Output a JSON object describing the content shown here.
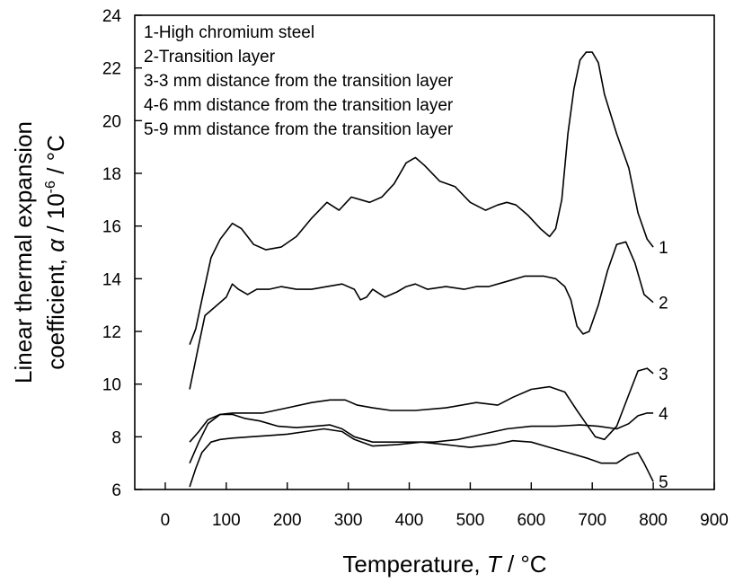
{
  "chart_data": {
    "type": "line",
    "xlabel": {
      "prefix": "Temperature,  ",
      "symbol": "T",
      "suffix": " / °C"
    },
    "ylabel": {
      "line1": "Linear thermal expansion",
      "line2_prefix": "coefficient, ",
      "line2_symbol": "α",
      "line2_mid": " / 10",
      "line2_sup": "-6",
      "line2_suffix": " / °C"
    },
    "xlim": [
      -50,
      900
    ],
    "ylim": [
      6,
      24
    ],
    "xticks": [
      "0",
      "100",
      "200",
      "300",
      "400",
      "500",
      "600",
      "700",
      "800",
      "900"
    ],
    "yticks": [
      "6",
      "8",
      "10",
      "12",
      "14",
      "16",
      "18",
      "20",
      "22",
      "24"
    ],
    "legend": [
      "1-High chromium steel",
      "2-Transition layer",
      "3-3 mm distance from the transition layer",
      "4-6 mm distance from the transition layer",
      "5-9 mm distance from the transition layer"
    ],
    "series": [
      {
        "name": "1",
        "x": [
          40,
          50,
          60,
          75,
          90,
          110,
          125,
          145,
          165,
          190,
          215,
          240,
          265,
          285,
          305,
          320,
          335,
          355,
          375,
          395,
          410,
          425,
          450,
          475,
          500,
          525,
          545,
          560,
          575,
          595,
          615,
          630,
          640,
          650,
          660,
          670,
          680,
          690,
          700,
          710,
          720,
          740,
          760,
          775,
          790,
          800
        ],
        "y": [
          11.5,
          12.1,
          13.2,
          14.8,
          15.5,
          16.1,
          15.9,
          15.3,
          15.1,
          15.2,
          15.6,
          16.3,
          16.9,
          16.6,
          17.1,
          17.0,
          16.9,
          17.1,
          17.6,
          18.4,
          18.6,
          18.3,
          17.7,
          17.5,
          16.9,
          16.6,
          16.8,
          16.9,
          16.8,
          16.4,
          15.9,
          15.6,
          15.9,
          17.0,
          19.5,
          21.2,
          22.3,
          22.6,
          22.6,
          22.2,
          21.0,
          19.5,
          18.2,
          16.5,
          15.5,
          15.2
        ]
      },
      {
        "name": "2",
        "x": [
          40,
          55,
          65,
          80,
          100,
          110,
          120,
          135,
          150,
          170,
          190,
          215,
          240,
          265,
          290,
          310,
          320,
          330,
          340,
          360,
          380,
          395,
          410,
          430,
          460,
          490,
          510,
          530,
          560,
          590,
          620,
          640,
          655,
          665,
          675,
          685,
          695,
          710,
          725,
          740,
          755,
          770,
          785,
          800
        ],
        "y": [
          9.8,
          11.5,
          12.6,
          12.9,
          13.3,
          13.8,
          13.6,
          13.4,
          13.6,
          13.6,
          13.7,
          13.6,
          13.6,
          13.7,
          13.8,
          13.6,
          13.2,
          13.3,
          13.6,
          13.3,
          13.5,
          13.7,
          13.8,
          13.6,
          13.7,
          13.6,
          13.7,
          13.7,
          13.9,
          14.1,
          14.1,
          14.0,
          13.7,
          13.2,
          12.2,
          11.9,
          12.0,
          13.0,
          14.3,
          15.3,
          15.4,
          14.6,
          13.4,
          13.1
        ]
      },
      {
        "name": "3",
        "x": [
          40,
          55,
          70,
          90,
          110,
          130,
          160,
          200,
          240,
          270,
          295,
          315,
          340,
          370,
          410,
          460,
          510,
          545,
          570,
          600,
          630,
          655,
          675,
          690,
          705,
          720,
          740,
          760,
          775,
          790,
          800
        ],
        "y": [
          7.0,
          7.8,
          8.5,
          8.85,
          8.9,
          8.9,
          8.9,
          9.1,
          9.3,
          9.4,
          9.4,
          9.2,
          9.1,
          9.0,
          9.0,
          9.1,
          9.3,
          9.2,
          9.5,
          9.8,
          9.9,
          9.7,
          9.0,
          8.5,
          8.0,
          7.9,
          8.4,
          9.6,
          10.5,
          10.6,
          10.4
        ]
      },
      {
        "name": "4",
        "x": [
          40,
          55,
          70,
          90,
          110,
          130,
          155,
          185,
          215,
          245,
          270,
          290,
          310,
          340,
          370,
          400,
          440,
          480,
          520,
          560,
          600,
          640,
          680,
          710,
          740,
          760,
          775,
          790,
          800
        ],
        "y": [
          7.8,
          8.2,
          8.65,
          8.85,
          8.85,
          8.7,
          8.6,
          8.4,
          8.35,
          8.4,
          8.45,
          8.3,
          8.0,
          7.8,
          7.8,
          7.8,
          7.8,
          7.9,
          8.1,
          8.3,
          8.4,
          8.4,
          8.45,
          8.4,
          8.3,
          8.5,
          8.8,
          8.9,
          8.9
        ]
      },
      {
        "name": "5",
        "x": [
          40,
          50,
          60,
          75,
          90,
          110,
          140,
          170,
          200,
          230,
          260,
          290,
          310,
          340,
          380,
          420,
          460,
          500,
          540,
          570,
          600,
          630,
          660,
          690,
          715,
          740,
          760,
          775,
          785,
          800
        ],
        "y": [
          6.1,
          6.8,
          7.4,
          7.8,
          7.9,
          7.95,
          8.0,
          8.05,
          8.1,
          8.2,
          8.3,
          8.2,
          7.9,
          7.65,
          7.7,
          7.8,
          7.7,
          7.6,
          7.7,
          7.85,
          7.8,
          7.6,
          7.4,
          7.2,
          7.0,
          7.0,
          7.3,
          7.4,
          7.0,
          6.3
        ]
      }
    ]
  }
}
